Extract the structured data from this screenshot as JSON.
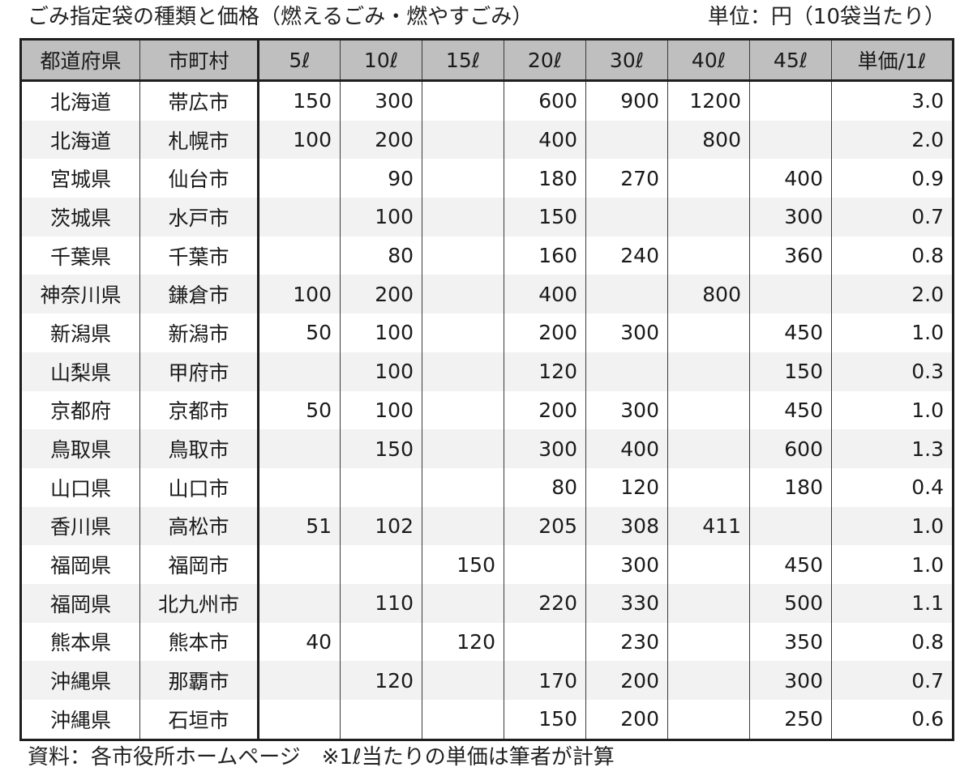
{
  "caption": "ごみ指定袋の種類と価格（燃えるごみ・燃やすごみ）",
  "unit": "単位：円（10袋当たり）",
  "columns": [
    "都道府県",
    "市町村",
    "5ℓ",
    "10ℓ",
    "15ℓ",
    "20ℓ",
    "30ℓ",
    "40ℓ",
    "45ℓ",
    "単価/1ℓ"
  ],
  "rows": [
    [
      "北海道",
      "帯広市",
      "150",
      "300",
      "",
      "600",
      "900",
      "1200",
      "",
      "3.0"
    ],
    [
      "北海道",
      "札幌市",
      "100",
      "200",
      "",
      "400",
      "",
      "800",
      "",
      "2.0"
    ],
    [
      "宮城県",
      "仙台市",
      "",
      "90",
      "",
      "180",
      "270",
      "",
      "400",
      "0.9"
    ],
    [
      "茨城県",
      "水戸市",
      "",
      "100",
      "",
      "150",
      "",
      "",
      "300",
      "0.7"
    ],
    [
      "千葉県",
      "千葉市",
      "",
      "80",
      "",
      "160",
      "240",
      "",
      "360",
      "0.8"
    ],
    [
      "神奈川県",
      "鎌倉市",
      "100",
      "200",
      "",
      "400",
      "",
      "800",
      "",
      "2.0"
    ],
    [
      "新潟県",
      "新潟市",
      "50",
      "100",
      "",
      "200",
      "300",
      "",
      "450",
      "1.0"
    ],
    [
      "山梨県",
      "甲府市",
      "",
      "100",
      "",
      "120",
      "",
      "",
      "150",
      "0.3"
    ],
    [
      "京都府",
      "京都市",
      "50",
      "100",
      "",
      "200",
      "300",
      "",
      "450",
      "1.0"
    ],
    [
      "鳥取県",
      "鳥取市",
      "",
      "150",
      "",
      "300",
      "400",
      "",
      "600",
      "1.3"
    ],
    [
      "山口県",
      "山口市",
      "",
      "",
      "",
      "80",
      "120",
      "",
      "180",
      "0.4"
    ],
    [
      "香川県",
      "高松市",
      "51",
      "102",
      "",
      "205",
      "308",
      "411",
      "",
      "1.0"
    ],
    [
      "福岡県",
      "福岡市",
      "",
      "",
      "150",
      "",
      "300",
      "",
      "450",
      "1.0"
    ],
    [
      "福岡県",
      "北九州市",
      "",
      "110",
      "",
      "220",
      "330",
      "",
      "500",
      "1.1"
    ],
    [
      "熊本県",
      "熊本市",
      "40",
      "",
      "120",
      "",
      "230",
      "",
      "350",
      "0.8"
    ],
    [
      "沖縄県",
      "那覇市",
      "",
      "120",
      "",
      "170",
      "200",
      "",
      "300",
      "0.7"
    ],
    [
      "沖縄県",
      "石垣市",
      "",
      "",
      "",
      "150",
      "200",
      "",
      "250",
      "0.6"
    ]
  ],
  "source": "資料：各市役所ホームページ　※1ℓ当たりの単価は筆者が計算"
}
